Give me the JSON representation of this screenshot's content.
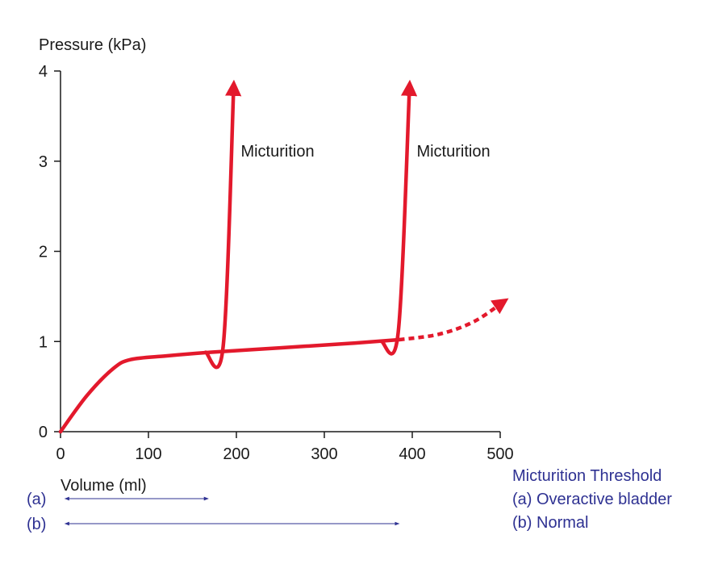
{
  "colors": {
    "curve": "#e3192c",
    "axis": "#1a1a1a",
    "legend": "#2e3192"
  },
  "chart_data": {
    "type": "line",
    "ylabel": "Pressure (kPa)",
    "xlabel": "Volume (ml)",
    "xlim": [
      0,
      500
    ],
    "ylim": [
      0,
      4
    ],
    "x_ticks": [
      "0",
      "100",
      "200",
      "300",
      "400",
      "500"
    ],
    "y_ticks": [
      "0",
      "1",
      "2",
      "3",
      "4"
    ],
    "grid": false,
    "series": [
      {
        "style": "solid",
        "points": [
          [
            0,
            0
          ],
          [
            30,
            0.4
          ],
          [
            60,
            0.7
          ],
          [
            80,
            0.8
          ],
          [
            120,
            0.84
          ],
          [
            170,
            0.88
          ],
          [
            250,
            0.93
          ],
          [
            330,
            0.98
          ],
          [
            385,
            1.02
          ]
        ]
      },
      {
        "style": "dotted-arrow",
        "points": [
          [
            385,
            1.02
          ],
          [
            430,
            1.08
          ],
          [
            470,
            1.22
          ],
          [
            505,
            1.45
          ]
        ]
      },
      {
        "style": "arrow",
        "points": [
          [
            165,
            0.88
          ],
          [
            185,
            0.95
          ],
          [
            197,
            3.85
          ]
        ]
      },
      {
        "style": "arrow",
        "points": [
          [
            365,
            1.0
          ],
          [
            384,
            1.1
          ],
          [
            397,
            3.85
          ]
        ]
      }
    ],
    "annotations": [
      {
        "text": "Micturition",
        "x": 205,
        "y": 3.05
      },
      {
        "text": "Micturition",
        "x": 405,
        "y": 3.05
      }
    ],
    "thresholds": [
      {
        "label": "(a)",
        "from": 5,
        "to": 168
      },
      {
        "label": "(b)",
        "from": 5,
        "to": 385
      }
    ],
    "legend": {
      "title": "Micturition Threshold",
      "items": [
        "(a) Overactive bladder",
        "(b) Normal"
      ]
    }
  }
}
